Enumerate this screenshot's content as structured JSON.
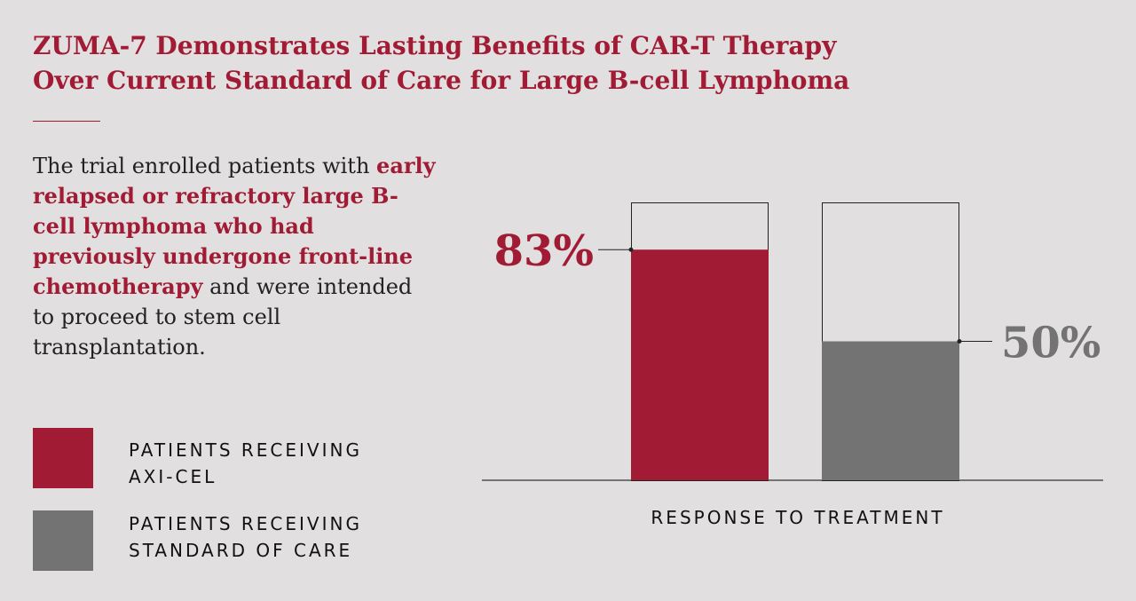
{
  "title": {
    "line1": "ZUMA-7 Demonstrates Lasting Benefits of CAR-T Therapy",
    "line2": "Over Current Standard of Care for Large B-cell Lymphoma"
  },
  "intro": {
    "lead": "The trial enrolled patients with",
    "highlight": "early relapsed or refractory large B-cell lymphoma who had previously undergone front-line chemotherapy",
    "tail": "and were intended to proceed to stem cell transplantation."
  },
  "legend": [
    {
      "line1": "PATIENTS RECEIVING",
      "line2": "AXI-CEL",
      "color": "#a01b33"
    },
    {
      "line1": "PATIENTS RECEIVING",
      "line2": "STANDARD OF CARE",
      "color": "#737373"
    }
  ],
  "chart_data": {
    "type": "bar",
    "xlabel": "RESPONSE TO TREATMENT",
    "ylabel": "",
    "ylim": [
      0,
      100
    ],
    "categories": [
      "PATIENTS RECEIVING AXI-CEL",
      "PATIENTS RECEIVING STANDARD OF CARE"
    ],
    "values": [
      83,
      50
    ],
    "data_labels": [
      "83%",
      "50%"
    ],
    "colors": [
      "#a01b33",
      "#737373"
    ],
    "grid": false
  }
}
